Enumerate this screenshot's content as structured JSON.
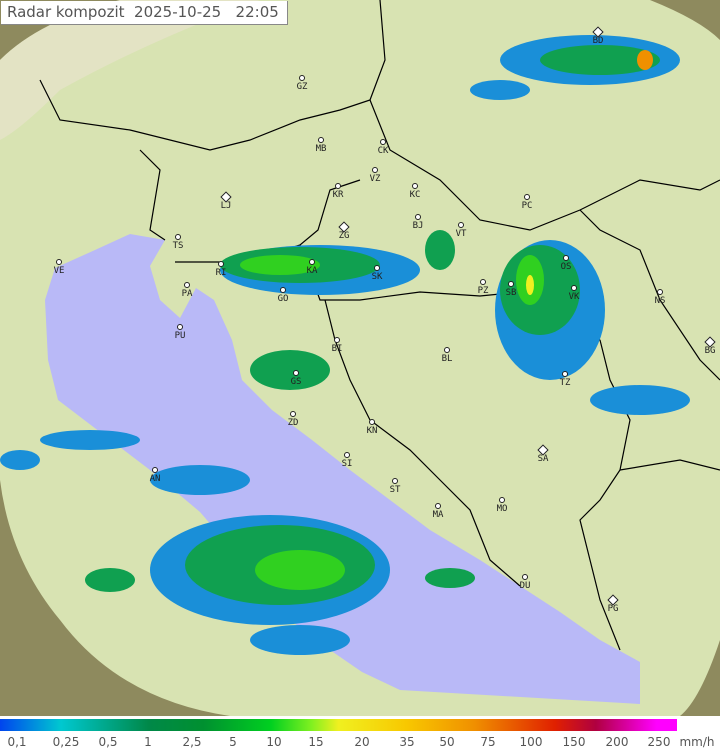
{
  "header": {
    "title": "Radar kompozit",
    "date": "2025-10-25",
    "time": "22:05"
  },
  "map": {
    "colors": {
      "land": "#d8e3b2",
      "sea": "#b9b9f7",
      "outside": "#8e8a5e",
      "border": "#000000",
      "rain_light": "#1a8fd8",
      "rain_mid": "#10a050",
      "rain_heavy": "#30d020"
    },
    "cities": [
      {
        "label": "BD",
        "capital": true
      },
      {
        "label": "GZ"
      },
      {
        "label": "MB"
      },
      {
        "label": "CK"
      },
      {
        "label": "VZ"
      },
      {
        "label": "KR"
      },
      {
        "label": "KC"
      },
      {
        "label": "LJ",
        "capital": true
      },
      {
        "label": "PC"
      },
      {
        "label": "ZG",
        "capital": true
      },
      {
        "label": "BJ"
      },
      {
        "label": "VT"
      },
      {
        "label": "TS"
      },
      {
        "label": "VE"
      },
      {
        "label": "RI"
      },
      {
        "label": "KA"
      },
      {
        "label": "SK"
      },
      {
        "label": "OS"
      },
      {
        "label": "PZ"
      },
      {
        "label": "SB"
      },
      {
        "label": "VK"
      },
      {
        "label": "NS"
      },
      {
        "label": "PA"
      },
      {
        "label": "GO"
      },
      {
        "label": "PU"
      },
      {
        "label": "BI"
      },
      {
        "label": "BL"
      },
      {
        "label": "BG",
        "capital": true
      },
      {
        "label": "GS"
      },
      {
        "label": "TZ"
      },
      {
        "label": "ZD"
      },
      {
        "label": "KN"
      },
      {
        "label": "SA",
        "capital": true
      },
      {
        "label": "SI"
      },
      {
        "label": "AN"
      },
      {
        "label": "ST"
      },
      {
        "label": "MA"
      },
      {
        "label": "MO"
      },
      {
        "label": "DU"
      },
      {
        "label": "PG",
        "capital": true
      }
    ]
  },
  "legend": {
    "unit": "mm/h",
    "ticks": [
      "0,1",
      "0,25",
      "0,5",
      "1",
      "2,5",
      "5",
      "10",
      "15",
      "20",
      "35",
      "50",
      "75",
      "100",
      "150",
      "200",
      "250"
    ]
  }
}
